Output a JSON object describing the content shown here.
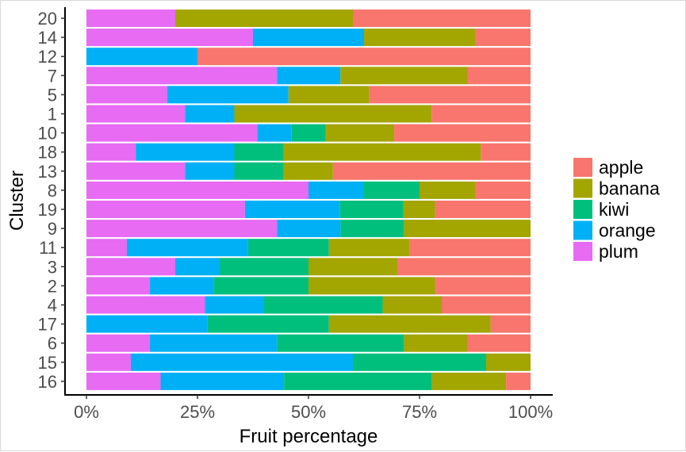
{
  "chart_data": {
    "type": "bar",
    "orientation": "horizontal",
    "stacked": "percent",
    "xlabel": "Fruit percentage",
    "ylabel": "Cluster",
    "xlim": [
      0,
      100
    ],
    "x_ticks": [
      "0%",
      "25%",
      "50%",
      "75%",
      "100%"
    ],
    "grid": false,
    "legend_position": "right",
    "categories": [
      "20",
      "14",
      "12",
      "7",
      "5",
      "1",
      "10",
      "18",
      "13",
      "8",
      "19",
      "9",
      "11",
      "3",
      "2",
      "4",
      "17",
      "6",
      "15",
      "16"
    ],
    "series": [
      {
        "name": "plum",
        "color": "#E76BF3",
        "values": [
          20,
          37.5,
          0,
          42.9,
          18.2,
          22.2,
          38.5,
          11.1,
          22.2,
          50,
          35.7,
          42.9,
          9.1,
          20,
          14.3,
          26.7,
          0,
          14.3,
          10,
          16.7
        ]
      },
      {
        "name": "orange",
        "color": "#00B0F6",
        "values": [
          0,
          25,
          25,
          14.3,
          27.3,
          11.1,
          7.7,
          22.2,
          11.1,
          12.5,
          21.4,
          14.3,
          27.3,
          10,
          14.3,
          13.3,
          27.3,
          28.6,
          50,
          27.8
        ]
      },
      {
        "name": "kiwi",
        "color": "#00BF7D",
        "values": [
          0,
          0,
          0,
          0,
          0,
          0,
          7.7,
          11.1,
          11.1,
          12.5,
          14.3,
          14.3,
          18.2,
          20,
          21.4,
          26.7,
          27.3,
          28.6,
          30,
          33.3
        ]
      },
      {
        "name": "banana",
        "color": "#A3A500",
        "values": [
          40,
          25,
          0,
          28.6,
          18.2,
          44.4,
          15.4,
          44.4,
          11.1,
          12.5,
          7.1,
          28.5,
          18.2,
          20,
          28.6,
          13.3,
          36.4,
          14.3,
          10,
          16.7
        ]
      },
      {
        "name": "apple",
        "color": "#F8766D",
        "values": [
          40,
          12.5,
          75,
          14.2,
          36.3,
          22.3,
          30.7,
          11.2,
          44.5,
          12.5,
          21.5,
          0,
          27.2,
          30,
          21.4,
          20,
          9,
          14.2,
          0,
          5.5
        ]
      }
    ],
    "legend": [
      {
        "name": "apple",
        "color": "#F8766D"
      },
      {
        "name": "banana",
        "color": "#A3A500"
      },
      {
        "name": "kiwi",
        "color": "#00BF7D"
      },
      {
        "name": "orange",
        "color": "#00B0F6"
      },
      {
        "name": "plum",
        "color": "#E76BF3"
      }
    ]
  }
}
